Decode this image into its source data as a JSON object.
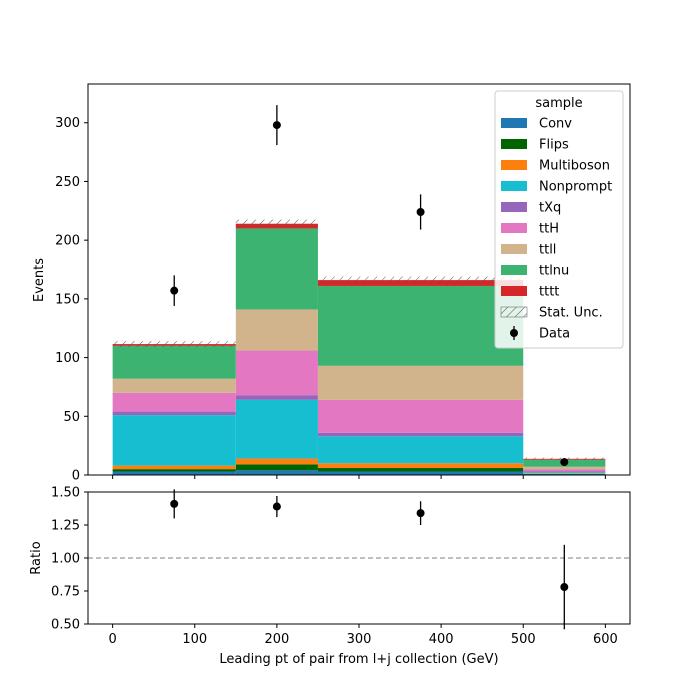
{
  "chart_data": {
    "type": "bar",
    "stacked": true,
    "xlabel": "Leading pt of pair from l+j collection (GeV)",
    "ylabel": "Events",
    "ratio_ylabel": "Ratio",
    "xlim": [
      -30,
      630
    ],
    "ylim": [
      0,
      333
    ],
    "ratio_ylim": [
      0.5,
      1.5
    ],
    "x_ticks": [
      "0",
      "100",
      "200",
      "300",
      "400",
      "500",
      "600"
    ],
    "x_tick_values": [
      0,
      100,
      200,
      300,
      400,
      500,
      600
    ],
    "y_ticks": [
      "0",
      "50",
      "100",
      "150",
      "200",
      "250",
      "300"
    ],
    "y_tick_values": [
      0,
      50,
      100,
      150,
      200,
      250,
      300
    ],
    "ratio_ticks": [
      "0.50",
      "0.75",
      "1.00",
      "1.25",
      "1.50"
    ],
    "ratio_tick_values": [
      0.5,
      0.75,
      1.0,
      1.25,
      1.5
    ],
    "ratio_reference": 1.0,
    "bin_edges": [
      0,
      150,
      250,
      500,
      600
    ],
    "legend": {
      "title": "sample",
      "placement": "top-right"
    },
    "series": [
      {
        "name": "Conv",
        "color": "#1f77b4",
        "values": [
          3,
          4,
          3,
          1
        ]
      },
      {
        "name": "Flips",
        "color": "#006400",
        "values": [
          2,
          5,
          3,
          0
        ]
      },
      {
        "name": "Multiboson",
        "color": "#ff7f0e",
        "values": [
          3,
          5,
          4,
          0.5
        ]
      },
      {
        "name": "Nonprompt",
        "color": "#17becf",
        "values": [
          43,
          50,
          23,
          1
        ]
      },
      {
        "name": "tXq",
        "color": "#9467bd",
        "values": [
          3,
          4,
          3,
          0.5
        ]
      },
      {
        "name": "ttH",
        "color": "#e377c2",
        "values": [
          16,
          38,
          28,
          2
        ]
      },
      {
        "name": "ttll",
        "color": "#d2b48c",
        "values": [
          12,
          35,
          29,
          2
        ]
      },
      {
        "name": "ttlnu",
        "color": "#3cb371",
        "values": [
          28,
          69,
          68,
          6
        ]
      },
      {
        "name": "tttt",
        "color": "#d62728",
        "values": [
          1.5,
          4,
          5,
          0.8
        ]
      }
    ],
    "stat_unc": {
      "name": "Stat. Unc.",
      "values": [
        2.5,
        3.5,
        3,
        1
      ]
    },
    "data_points": {
      "name": "Data",
      "x": [
        75,
        200,
        375,
        550
      ],
      "y": [
        157,
        298,
        224,
        11
      ],
      "yerr": [
        13,
        17,
        15,
        3.3
      ]
    },
    "ratio_points": {
      "x": [
        75,
        200,
        375,
        550
      ],
      "y": [
        1.41,
        1.39,
        1.34,
        0.78
      ],
      "yerr": [
        0.11,
        0.08,
        0.09,
        0.32
      ]
    }
  }
}
